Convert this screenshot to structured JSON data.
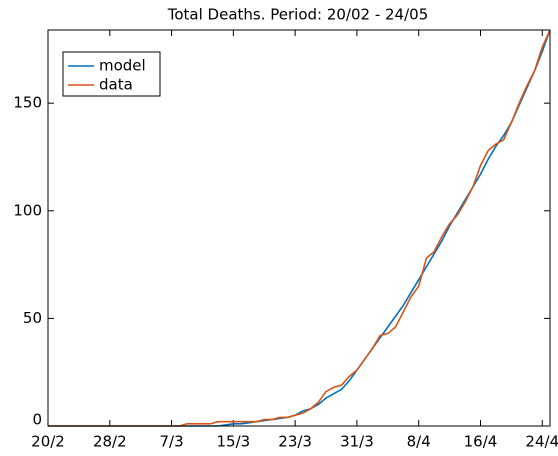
{
  "chart_data": {
    "type": "line",
    "title": "Total Deaths. Period: 20/02 - 24/05",
    "x": [
      0,
      1,
      2,
      3,
      4,
      5,
      6,
      7,
      8,
      9,
      10,
      11,
      12,
      13,
      14,
      15,
      16,
      17,
      18,
      19,
      20,
      21,
      22,
      23,
      24,
      25,
      26,
      27,
      28,
      29,
      30,
      31,
      32,
      33,
      34,
      35,
      36,
      37,
      38,
      39,
      40,
      41,
      42,
      43,
      44,
      45,
      46,
      47,
      48,
      49,
      50,
      51,
      52,
      53,
      54,
      55,
      56,
      57,
      58,
      59,
      60,
      61,
      62,
      63,
      64,
      65
    ],
    "series": [
      {
        "name": "model",
        "color": "#0072bd",
        "values": [
          0,
          0,
          0,
          0,
          0,
          0,
          0,
          0,
          0,
          0,
          0,
          0,
          0,
          0,
          0,
          0,
          0,
          0,
          0,
          0,
          0,
          0,
          0,
          0.5,
          1,
          1,
          1.5,
          2,
          2.5,
          3,
          3.5,
          4,
          5,
          7,
          8,
          10,
          13,
          15,
          17,
          21,
          26,
          31,
          36,
          41,
          46,
          51,
          56,
          62,
          68,
          74,
          80,
          86,
          93,
          99,
          105,
          111,
          117,
          124,
          130,
          135,
          141,
          149,
          157,
          165,
          174,
          184
        ]
      },
      {
        "name": "data",
        "color": "#d95319",
        "values": [
          0,
          0,
          0,
          0,
          0,
          0,
          0,
          0,
          0,
          0,
          0,
          0,
          0,
          0,
          0,
          0,
          0,
          0,
          1,
          1,
          1,
          1,
          2,
          2,
          2,
          2,
          2,
          2,
          3,
          3,
          4,
          4,
          5,
          6,
          8,
          11,
          16,
          18,
          19,
          23,
          26,
          31,
          36,
          42,
          43,
          46,
          53,
          60,
          65,
          78,
          81,
          88,
          94,
          98,
          104,
          111,
          121,
          128,
          131,
          133,
          141,
          150,
          158,
          165,
          176,
          184
        ]
      }
    ],
    "xlim": [
      0,
      65
    ],
    "xticks": [
      {
        "value": 0,
        "label": "20/2"
      },
      {
        "value": 8,
        "label": "28/2"
      },
      {
        "value": 16,
        "label": "7/3"
      },
      {
        "value": 24,
        "label": "15/3"
      },
      {
        "value": 32,
        "label": "23/3"
      },
      {
        "value": 40,
        "label": "31/3"
      },
      {
        "value": 48,
        "label": "8/4"
      },
      {
        "value": 56,
        "label": "16/4"
      },
      {
        "value": 64,
        "label": "24/4"
      }
    ],
    "ylim": [
      0,
      184
    ],
    "yticks": [
      0,
      50,
      100,
      150
    ],
    "legend": "upper left"
  }
}
